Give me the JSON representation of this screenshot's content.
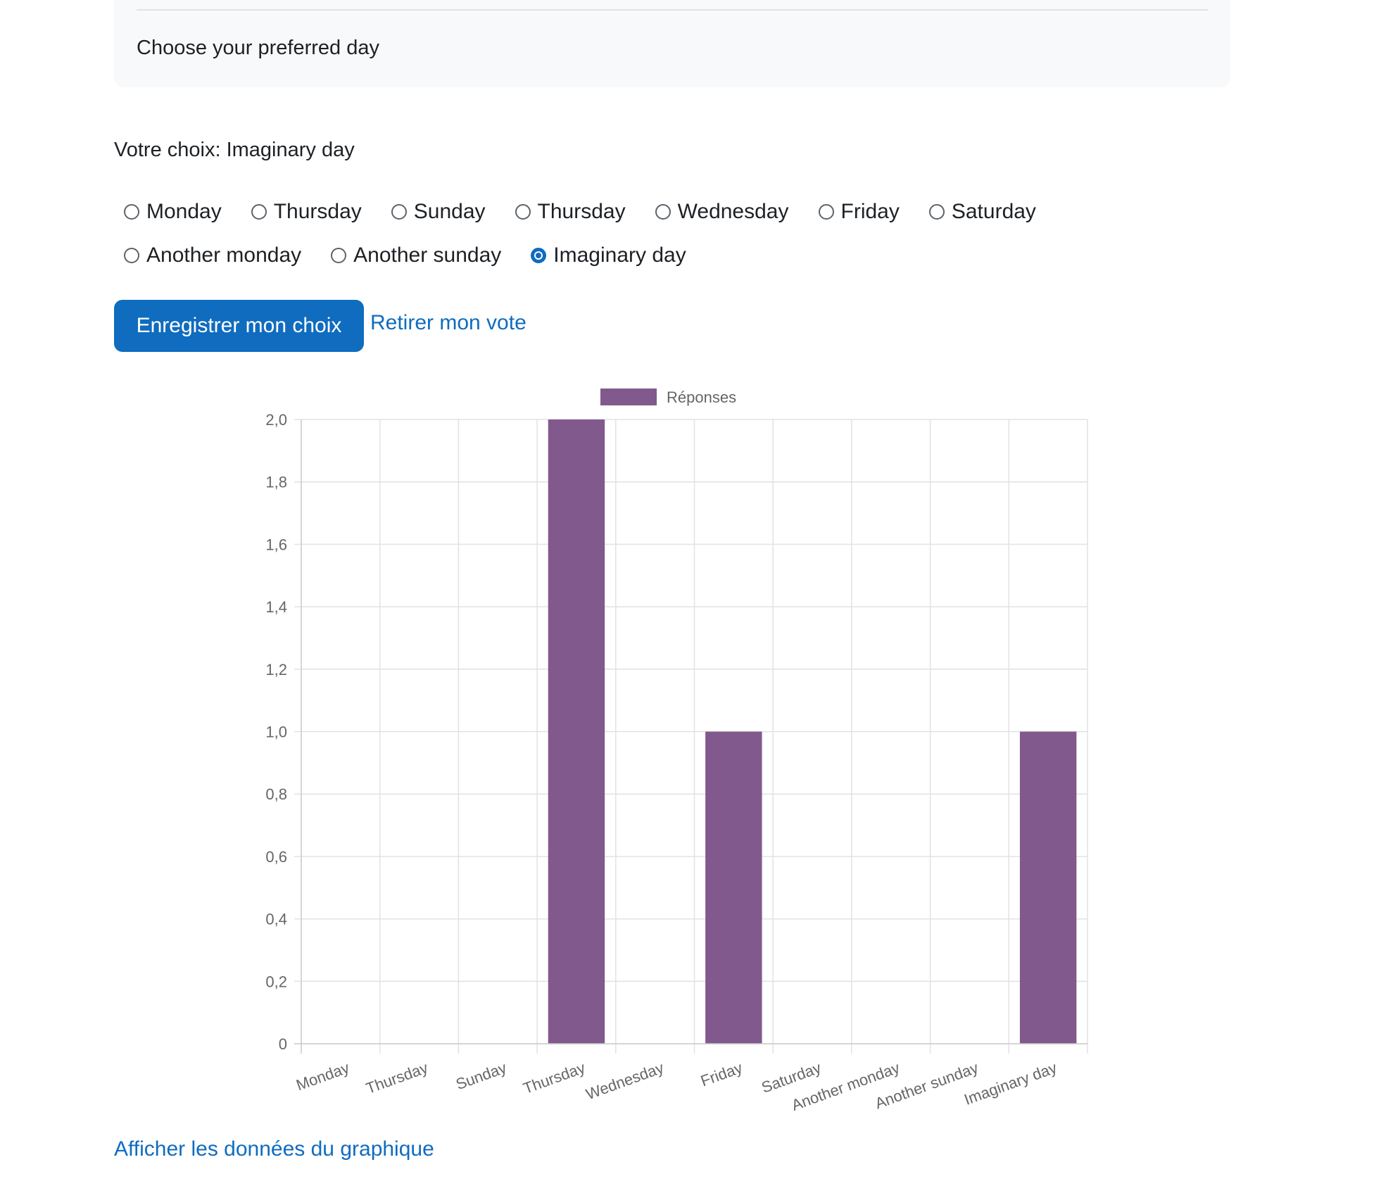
{
  "intro": {
    "text": "Choose your preferred day"
  },
  "choice": {
    "label": "Votre choix: Imaginary day"
  },
  "options": [
    {
      "label": "Monday",
      "checked": false
    },
    {
      "label": "Thursday",
      "checked": false
    },
    {
      "label": "Sunday",
      "checked": false
    },
    {
      "label": "Thursday",
      "checked": false
    },
    {
      "label": "Wednesday",
      "checked": false
    },
    {
      "label": "Friday",
      "checked": false
    },
    {
      "label": "Saturday",
      "checked": false
    },
    {
      "label": "Another monday",
      "checked": false
    },
    {
      "label": "Another sunday",
      "checked": false
    },
    {
      "label": "Imaginary day",
      "checked": true
    }
  ],
  "actions": {
    "save_label": "Enregistrer mon choix",
    "withdraw_label": "Retirer mon vote",
    "show_data_label": "Afficher les données du graphique"
  },
  "colors": {
    "primary": "#0f6cbf",
    "bar": "#81598c"
  },
  "chart_data": {
    "type": "bar",
    "categories": [
      "Monday",
      "Thursday",
      "Sunday",
      "Thursday",
      "Wednesday",
      "Friday",
      "Saturday",
      "Another monday",
      "Another sunday",
      "Imaginary day"
    ],
    "series": [
      {
        "name": "Réponses",
        "values": [
          0,
          0,
          0,
          2,
          0,
          1,
          0,
          0,
          0,
          1
        ],
        "color": "#81598c"
      }
    ],
    "yticks": [
      "0",
      "0,2",
      "0,4",
      "0,6",
      "0,8",
      "1,0",
      "1,2",
      "1,4",
      "1,6",
      "1,8",
      "2,0"
    ],
    "ylim": [
      0,
      2
    ],
    "grid": true,
    "legend": "top-center"
  }
}
